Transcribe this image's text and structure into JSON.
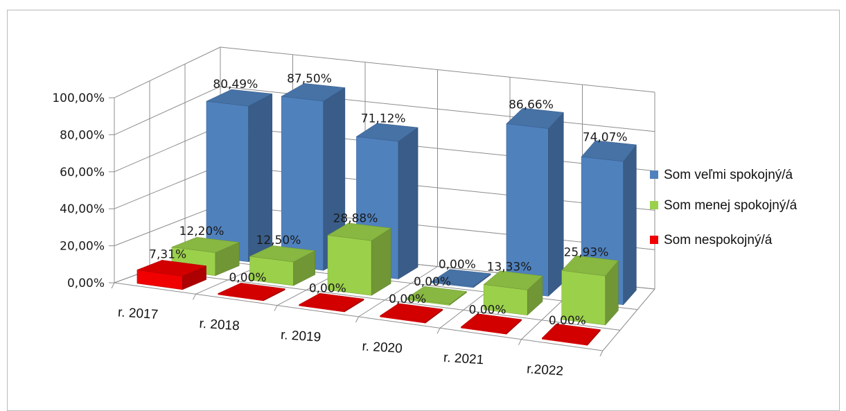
{
  "chart_data": {
    "type": "bar",
    "categories": [
      "r. 2017",
      "r. 2018",
      "r. 2019",
      "r. 2020",
      "r. 2021",
      "r.2022"
    ],
    "series": [
      {
        "name": "Som veľmi spokojný/á",
        "color": "#4F81BD",
        "values": [
          80.49,
          87.5,
          71.12,
          0.0,
          86.66,
          74.07
        ],
        "labels": [
          "80,49%",
          "87,50%",
          "71,12%",
          "0,00%",
          "86,66%",
          "74,07%"
        ]
      },
      {
        "name": "Som menej spokojný/á",
        "color": "#9BD04B",
        "values": [
          12.2,
          12.5,
          28.88,
          0.0,
          13.33,
          25.93
        ],
        "labels": [
          "12,20%",
          "12,50%",
          "28,88%",
          "0,00%",
          "13,33%",
          "25,93%"
        ]
      },
      {
        "name": "Som nespokojný/á",
        "color": "#F00000",
        "values": [
          7.31,
          0.0,
          0.0,
          0.0,
          0.0,
          0.0
        ],
        "labels": [
          "7,31%",
          "0,00%",
          "0,00%",
          "0,00%",
          "0,00%",
          "0,00%"
        ]
      }
    ],
    "y_ticks": [
      "0,00%",
      "20,00%",
      "40,00%",
      "60,00%",
      "80,00%",
      "100,00%"
    ],
    "ylim": [
      0,
      100
    ],
    "legend_position": "right",
    "grid": true,
    "style": "3d-column"
  }
}
